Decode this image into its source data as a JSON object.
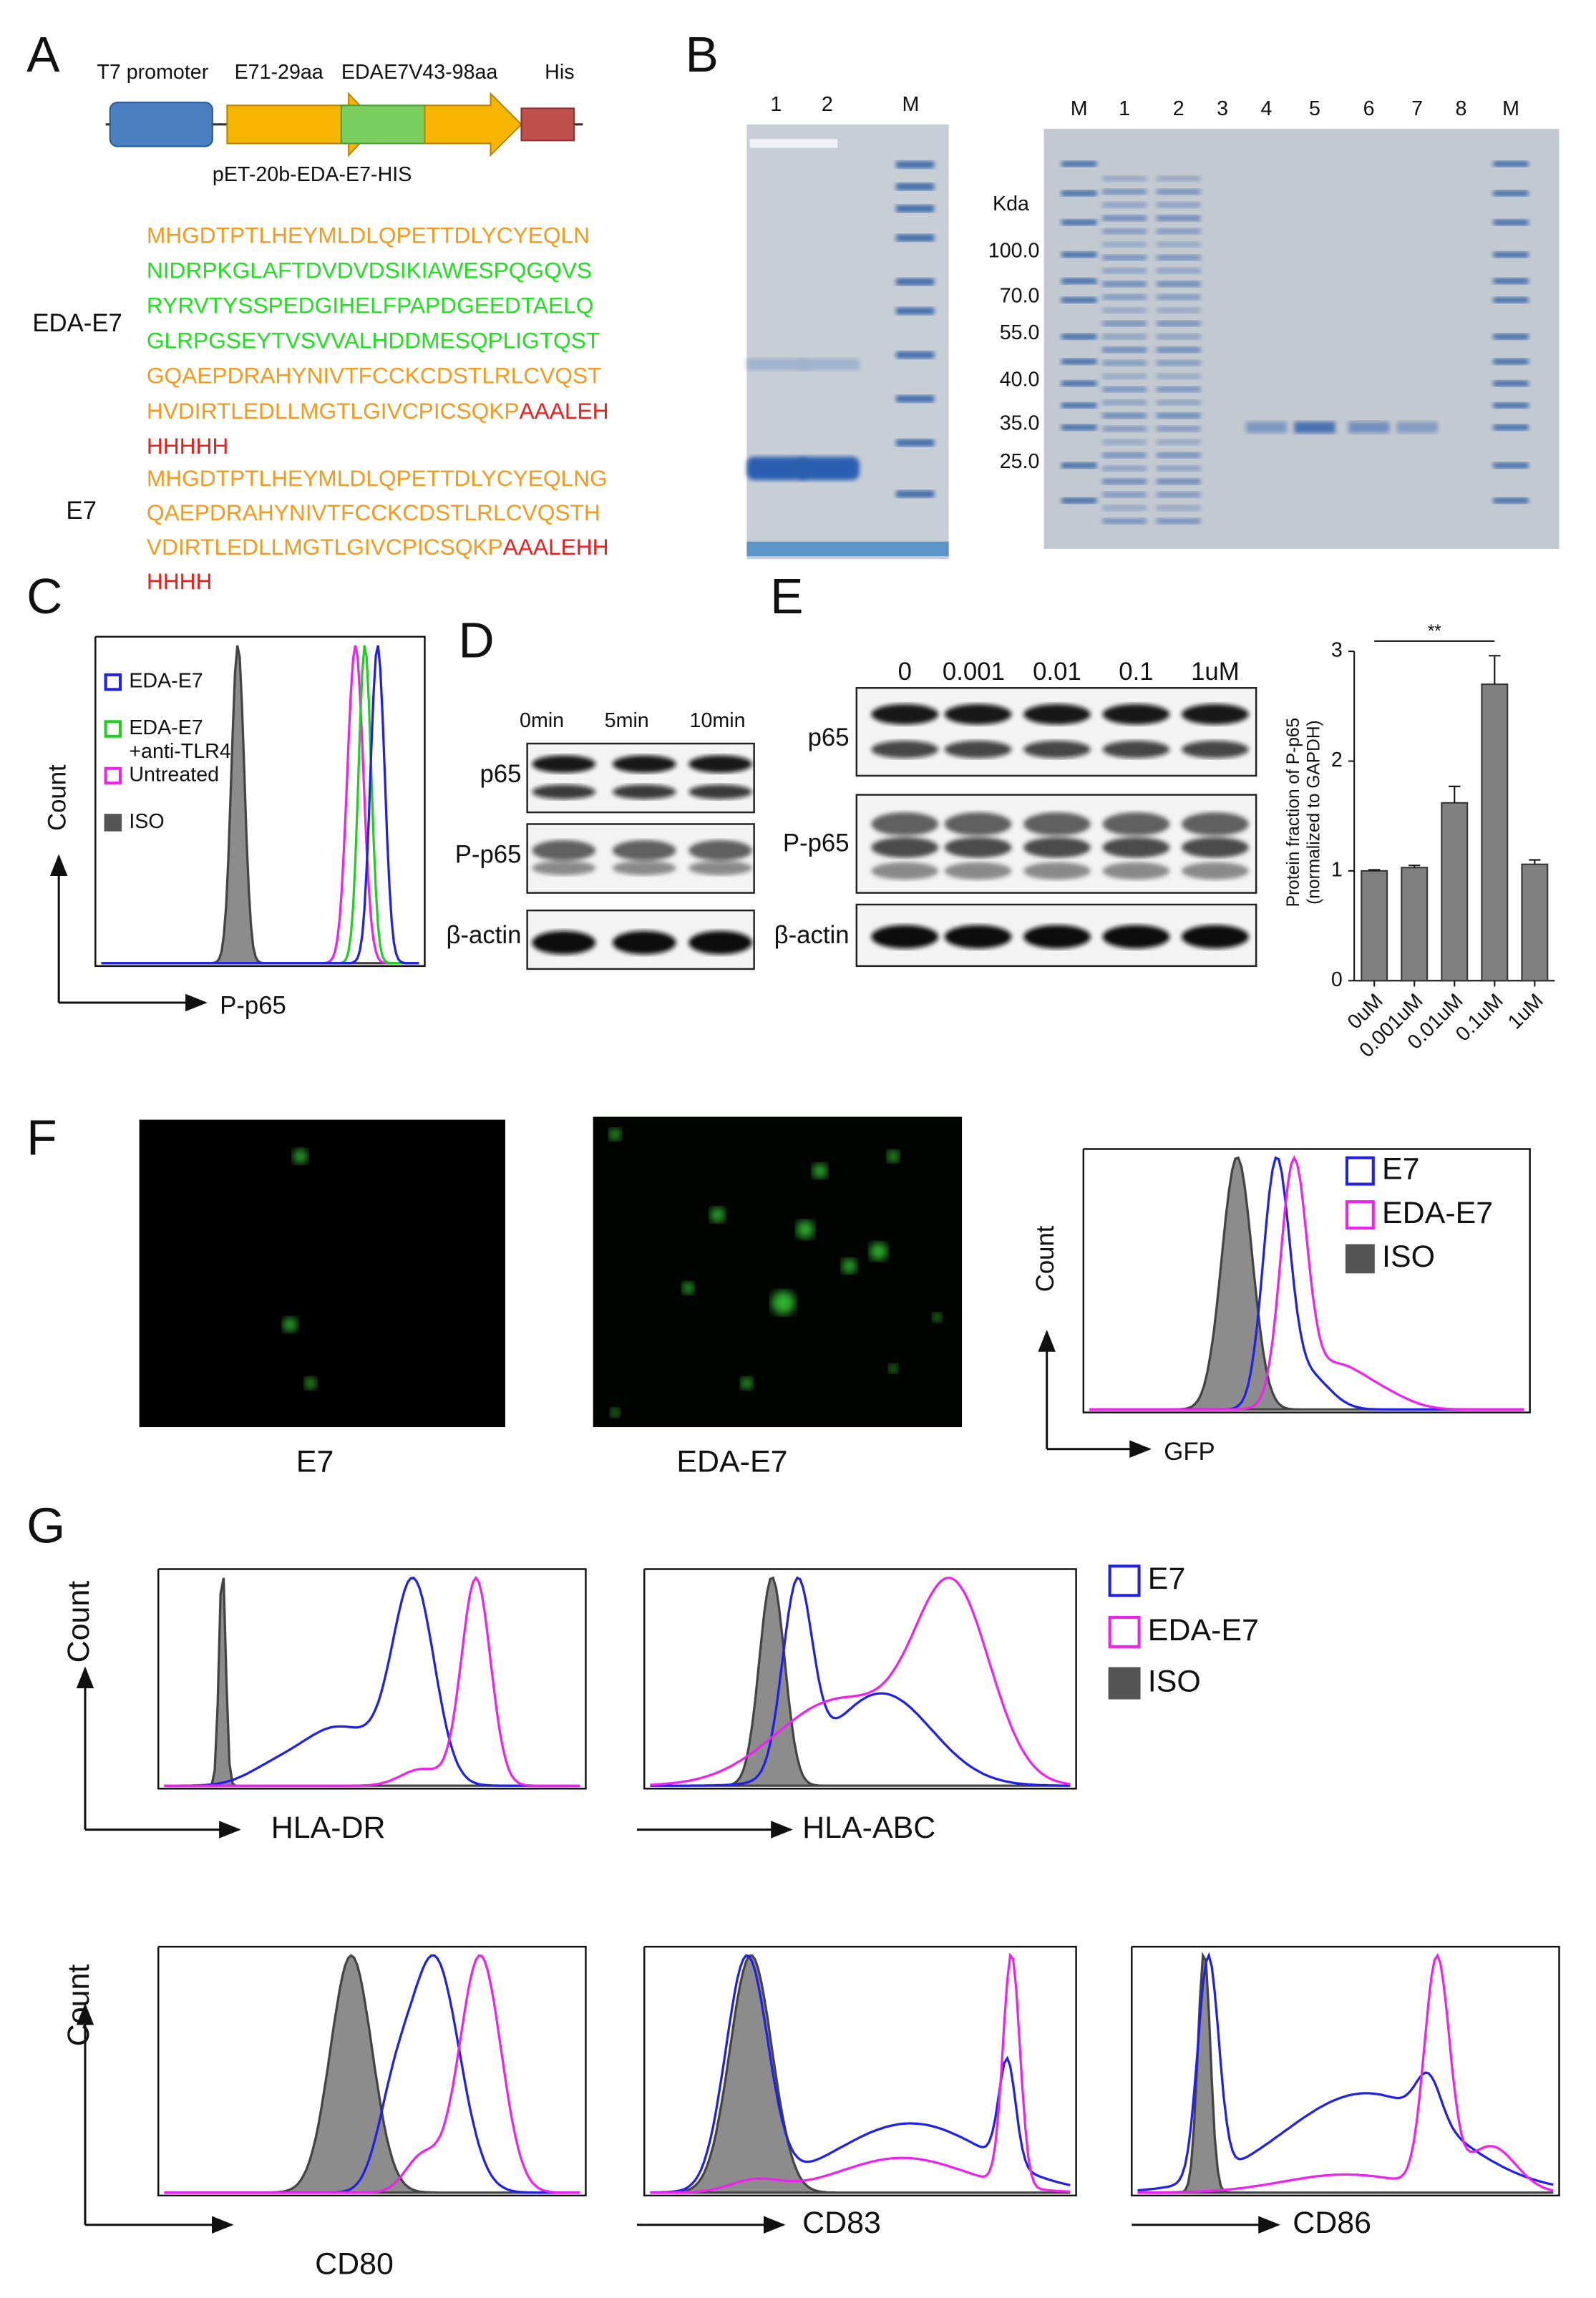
{
  "panels": {
    "A": {
      "label": "A",
      "construct": [
        "T7 promoter",
        "E71-29aa",
        "EDA",
        "E7V43-98aa",
        "His"
      ],
      "plasmid": "pET-20b-EDA-E7-HIS",
      "sequences": [
        {
          "name": "EDA-E7",
          "lines": [
            [
              {
                "text": "MHGDTPTLHEYMLDLQPETTDLYCYEQLN",
                "color": "#f39a1e"
              }
            ],
            [
              {
                "text": "NIDRPKGLAFTDVDVDSIKIAWESPQGQVS",
                "color": "#1ee01e"
              }
            ],
            [
              {
                "text": "RYRVTYSSPEDGIHELFPAPDGEEDTAELQ",
                "color": "#1ee01e"
              }
            ],
            [
              {
                "text": "GLRPGSEYTVSVVALHDDMESQPLIGTQST",
                "color": "#1ee01e"
              }
            ],
            [
              {
                "text": "GQAEPDRAHYNIVTFCCKCDSTLRLCVQST",
                "color": "#f39a1e"
              }
            ],
            [
              {
                "text": "HVDIRTLEDLLMGTLGIVCPICSQKP",
                "color": "#f39a1e"
              },
              {
                "text": "AAALEH",
                "color": "#ee1c1c"
              }
            ],
            [
              {
                "text": "HHHHH",
                "color": "#ee1c1c"
              }
            ]
          ]
        },
        {
          "name": "E7",
          "lines": [
            [
              {
                "text": "MHGDTPTLHEYMLDLQPETTDLYCYEQLNG",
                "color": "#f39a1e"
              }
            ],
            [
              {
                "text": "QAEPDRAHYNIVTFCCKCDSTLRLCVQSTH",
                "color": "#f39a1e"
              }
            ],
            [
              {
                "text": "VDIRTLEDLLMGTLGIVCPICSQKP",
                "color": "#f39a1e"
              },
              {
                "text": "AAALEHH",
                "color": "#ee1c1c"
              }
            ],
            [
              {
                "text": "HHHH",
                "color": "#ee1c1c"
              }
            ]
          ]
        }
      ]
    },
    "B": {
      "label": "B",
      "gel1_lanes": [
        "1",
        "2",
        "M"
      ],
      "gel2_lanes": [
        "M",
        "1",
        "2",
        "3",
        "4",
        "5",
        "6",
        "7",
        "8",
        "M"
      ],
      "unit": "Kda",
      "markers": [
        "100.0",
        "70.0",
        "55.0",
        "40.0",
        "35.0",
        "25.0"
      ]
    },
    "C": {
      "label": "C",
      "legend": [
        {
          "name": "EDA-E7",
          "color": "#2020e8"
        },
        {
          "name": "EDA-E7",
          "note": "+anti-TLR4",
          "color": "#20d020"
        },
        {
          "name": "Untreated",
          "color": "#f020f0"
        },
        {
          "name": "ISO",
          "color": "#555555"
        }
      ],
      "ylabel": "Count",
      "xlabel": "P-p65"
    },
    "D": {
      "label": "D",
      "times": [
        "0min",
        "5min",
        "10min"
      ],
      "rows": [
        "p65",
        "P-p65",
        "β-actin"
      ]
    },
    "E": {
      "label": "E",
      "doses": [
        "0",
        "0.001",
        "0.01",
        "0.1",
        "1uM"
      ],
      "rows": [
        "p65",
        "P-p65",
        "β-actin"
      ]
    },
    "F": {
      "label": "F",
      "images": [
        "E7",
        "EDA-E7"
      ],
      "legend": [
        {
          "name": "E7",
          "color": "#2020e8"
        },
        {
          "name": "EDA-E7",
          "color": "#f020f0"
        },
        {
          "name": "ISO",
          "color": "#555555"
        }
      ],
      "ylabel": "Count",
      "xlabel": "GFP"
    },
    "G": {
      "label": "G",
      "legend": [
        {
          "name": "E7",
          "color": "#2020e8"
        },
        {
          "name": "EDA-E7",
          "color": "#f020f0"
        },
        {
          "name": "ISO",
          "color": "#555555"
        }
      ],
      "ylabel": "Count",
      "plots": [
        "HLA-DR",
        "HLA-ABC",
        "CD80",
        "CD83",
        "CD86"
      ]
    }
  },
  "chart_data": {
    "type": "bar",
    "ylabel": [
      "Protein fraction of P-p65",
      "(normalized to GAPDH)"
    ],
    "categories": [
      "0uM",
      "0.001uM",
      "0.01uM",
      "0.1uM",
      "1uM"
    ],
    "values": [
      1,
      1.03,
      1.62,
      2.7,
      1.06
    ],
    "errors": [
      0.01,
      0.02,
      0.15,
      0.26,
      0.04
    ],
    "color": "#808080",
    "ylim": [
      0,
      3
    ],
    "yticks": [
      0,
      1,
      2,
      3
    ],
    "significance": {
      "label": "**",
      "from": 0,
      "to": 3
    }
  }
}
